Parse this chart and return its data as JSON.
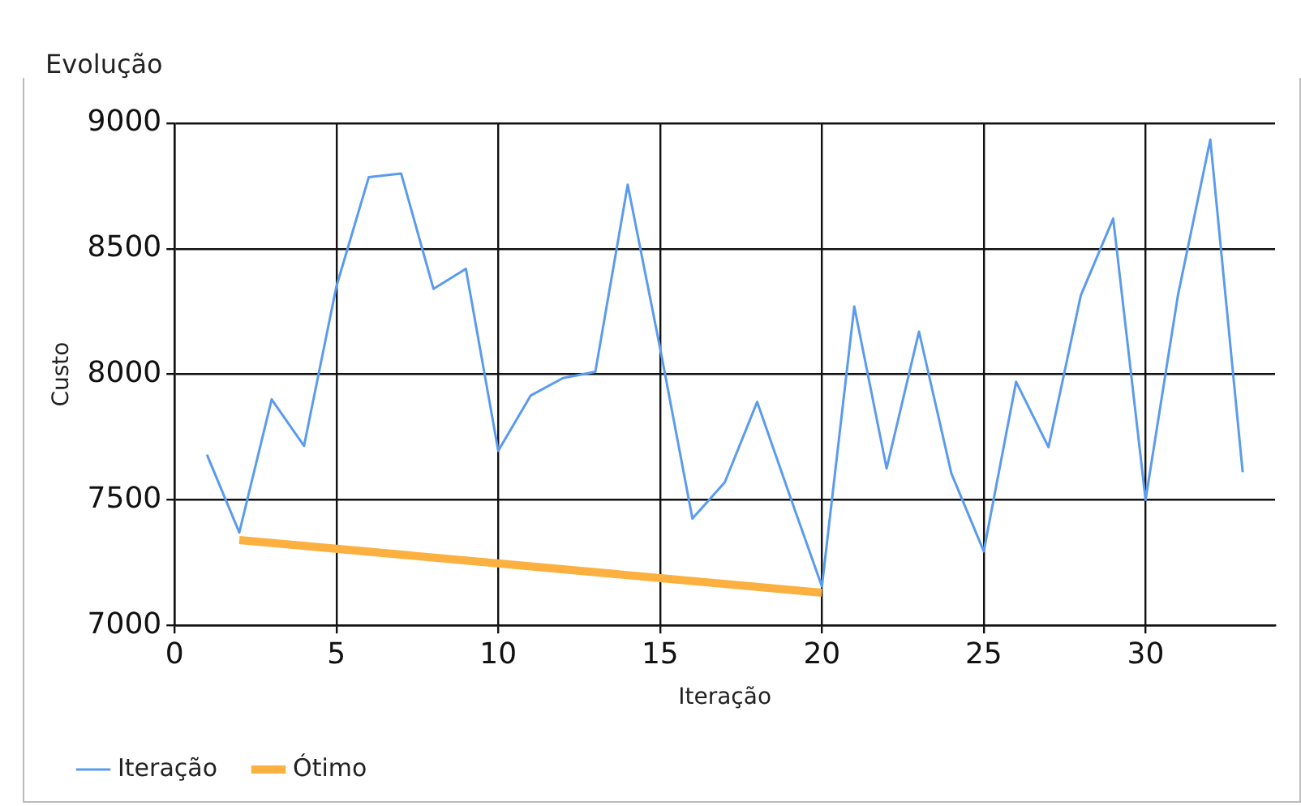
{
  "chart_data": {
    "type": "line",
    "title": "Evolução",
    "xlabel": "Iteração",
    "ylabel": "Custo",
    "xlim": [
      0,
      34
    ],
    "xticks": [
      0,
      5,
      10,
      15,
      20,
      25,
      30
    ],
    "ylim": [
      7000,
      9000
    ],
    "yticks": [
      7000,
      7500,
      8000,
      8500,
      9000
    ],
    "grid": true,
    "legend": "bottom left",
    "marker": "none",
    "line_style": "solid",
    "series": [
      {
        "name": "Iteração",
        "color": "#5b9bef",
        "x": [
          1,
          2,
          3,
          4,
          5,
          6,
          7,
          8,
          9,
          10,
          11,
          12,
          13,
          14,
          15,
          16,
          17,
          18,
          19,
          20,
          21,
          22,
          23,
          24,
          25,
          26,
          27,
          28,
          29,
          30,
          31,
          32,
          33
        ],
        "values": [
          7680,
          7370,
          7900,
          7715,
          8350,
          8785,
          8800,
          8340,
          8420,
          7695,
          7915,
          7985,
          8010,
          8755,
          8105,
          7425,
          7570,
          7890,
          7520,
          7155,
          8270,
          7625,
          8170,
          7605,
          7295,
          7970,
          7710,
          8315,
          8620,
          7500,
          8315,
          8935,
          7610
        ]
      },
      {
        "name": "Ótimo",
        "color": "#fbb040",
        "x": [
          2,
          20
        ],
        "values": [
          7340,
          7130
        ]
      }
    ]
  }
}
